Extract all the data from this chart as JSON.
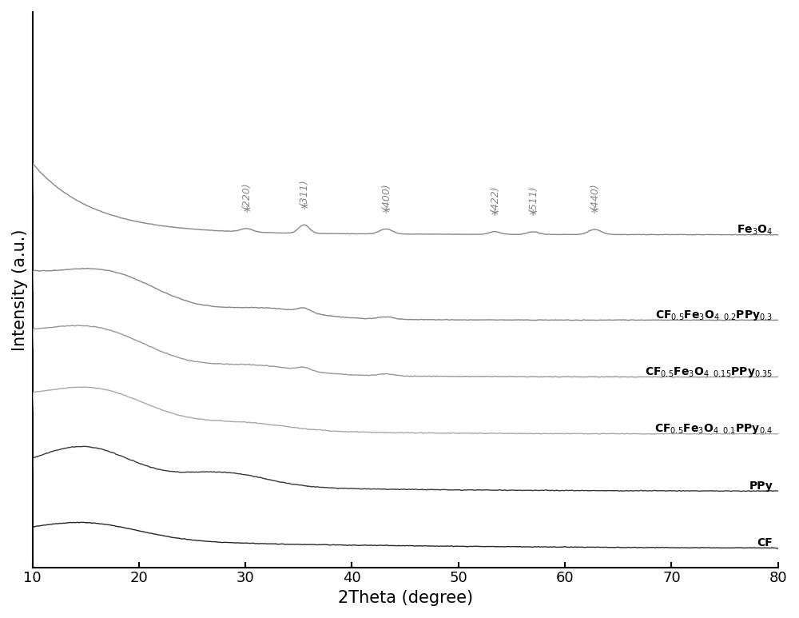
{
  "x_min": 10,
  "x_max": 80,
  "xlabel": "2Theta (degree)",
  "ylabel": "Intensity (a.u.)",
  "background_color": "#ffffff",
  "peak_positions": [
    30.1,
    35.5,
    43.2,
    53.4,
    57.0,
    62.8
  ],
  "peak_labels": [
    "(220)",
    "(311)",
    "(400)",
    "(422)",
    "(511)",
    "(440)"
  ],
  "label_color": "#888888",
  "figsize": [
    10.0,
    7.73
  ],
  "dpi": 100,
  "curve_colors": {
    "fe3o4": "#888888",
    "composite1": "#888888",
    "composite2": "#999999",
    "composite3": "#aaaaaa",
    "ppy": "#3a3a3a",
    "cf": "#2a2a2a"
  },
  "curve_offsets": {
    "fe3o4": 6.8,
    "composite1": 5.0,
    "composite2": 3.8,
    "composite3": 2.6,
    "ppy": 1.4,
    "cf": 0.2
  },
  "curve_scales": {
    "fe3o4": 1.5,
    "composite1": 1.1,
    "composite2": 1.1,
    "composite3": 1.0,
    "ppy": 0.95,
    "cf": 0.55
  }
}
